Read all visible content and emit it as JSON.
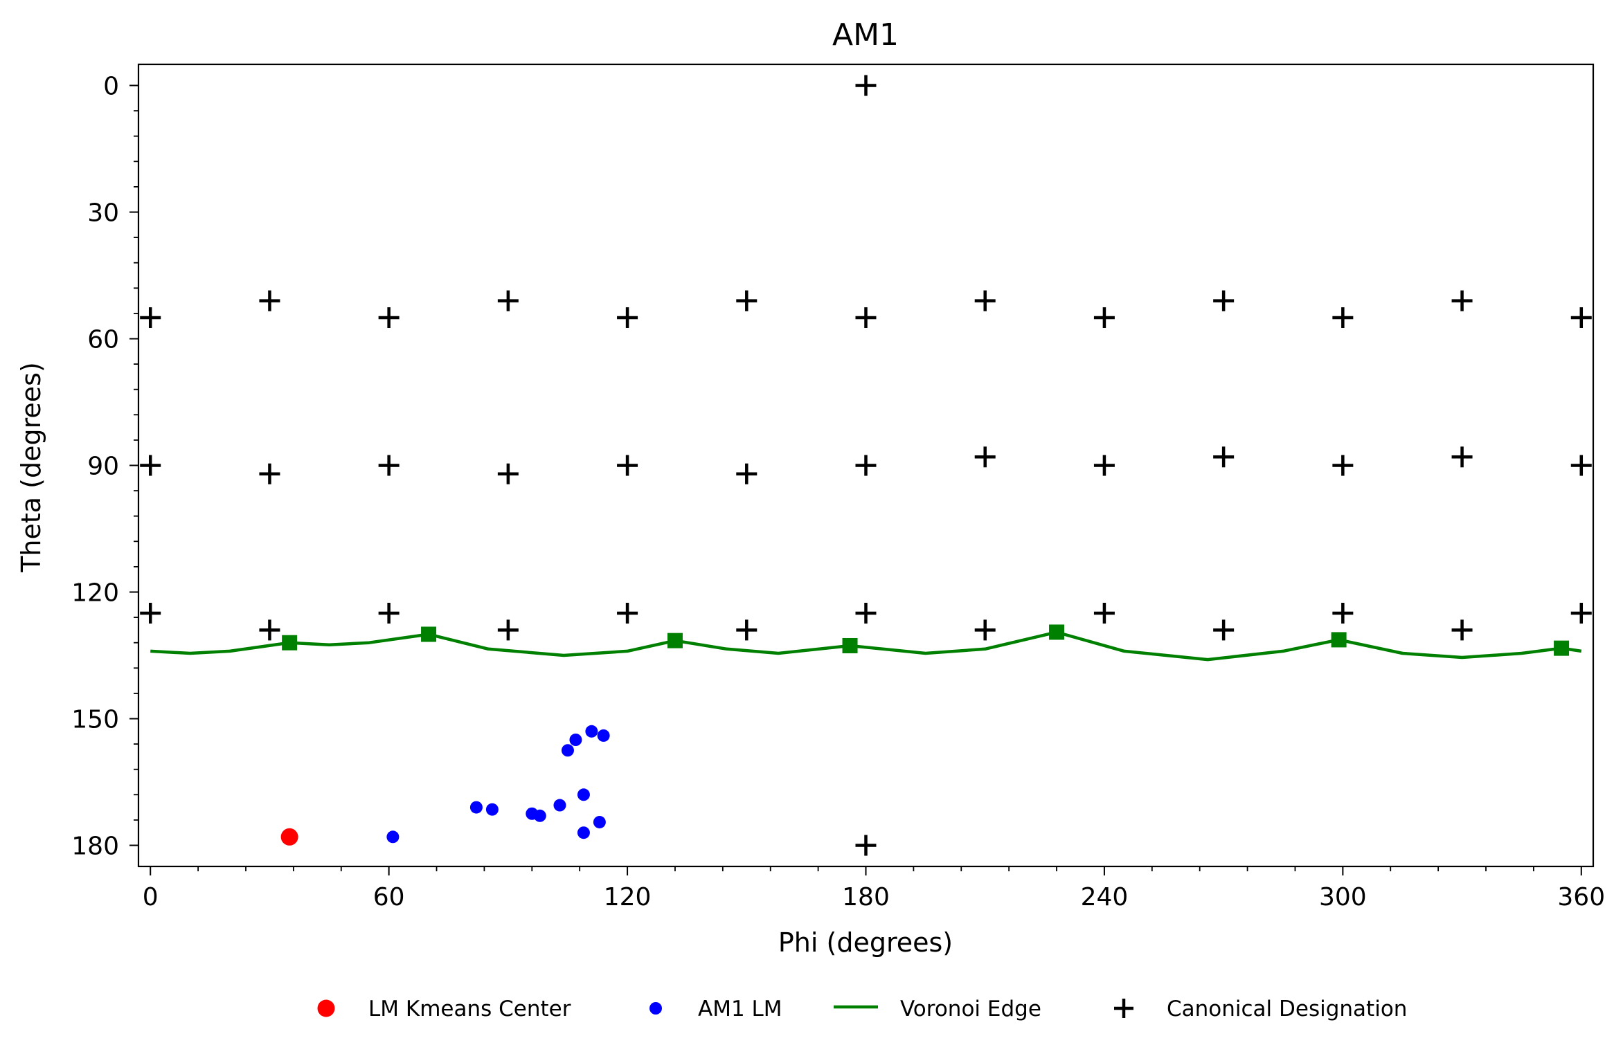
{
  "chart_data": {
    "type": "scatter",
    "title": "AM1",
    "xlabel": "Phi (degrees)",
    "ylabel": "Theta (degrees)",
    "xlim": [
      -3,
      363
    ],
    "ylim": [
      185,
      -5
    ],
    "y_inverted": true,
    "xticks": [
      0,
      60,
      120,
      180,
      240,
      300,
      360
    ],
    "yticks": [
      0,
      30,
      60,
      90,
      120,
      150,
      180
    ],
    "xminor_step": 12,
    "yminor_step": 6,
    "grid": false,
    "legend_position": "bottom-center",
    "legend": [
      {
        "label": "LM Kmeans Center",
        "marker": "circle-large",
        "color": "#ff0000"
      },
      {
        "label": "AM1 LM",
        "marker": "circle",
        "color": "#0000ff"
      },
      {
        "label": "Voronoi Edge",
        "marker": "line",
        "color": "#008000"
      },
      {
        "label": "Canonical Designation",
        "marker": "plus",
        "color": "#000000"
      }
    ],
    "series": [
      {
        "key": "kmeans_center",
        "marker": "circle-large",
        "color": "#ff0000",
        "points": [
          [
            35,
            178
          ]
        ]
      },
      {
        "key": "am1_lm",
        "marker": "circle",
        "color": "#0000ff",
        "points": [
          [
            61,
            178
          ],
          [
            82,
            171
          ],
          [
            86,
            171.5
          ],
          [
            96,
            172.5
          ],
          [
            98,
            173
          ],
          [
            103,
            170.5
          ],
          [
            109,
            168
          ],
          [
            109,
            177
          ],
          [
            113,
            174.5
          ],
          [
            105,
            157.5
          ],
          [
            107,
            155
          ],
          [
            111,
            153
          ],
          [
            114,
            154
          ]
        ]
      },
      {
        "key": "canonical",
        "marker": "plus",
        "color": "#000000",
        "points": [
          [
            180,
            0
          ],
          [
            180,
            180
          ],
          [
            0,
            55
          ],
          [
            30,
            51
          ],
          [
            60,
            55
          ],
          [
            90,
            51
          ],
          [
            120,
            55
          ],
          [
            150,
            51
          ],
          [
            180,
            55
          ],
          [
            210,
            51
          ],
          [
            240,
            55
          ],
          [
            270,
            51
          ],
          [
            300,
            55
          ],
          [
            330,
            51
          ],
          [
            360,
            55
          ],
          [
            0,
            90
          ],
          [
            30,
            92
          ],
          [
            60,
            90
          ],
          [
            90,
            92
          ],
          [
            120,
            90
          ],
          [
            150,
            92
          ],
          [
            180,
            90
          ],
          [
            210,
            88
          ],
          [
            240,
            90
          ],
          [
            270,
            88
          ],
          [
            300,
            90
          ],
          [
            330,
            88
          ],
          [
            360,
            90
          ],
          [
            0,
            125
          ],
          [
            30,
            129
          ],
          [
            60,
            125
          ],
          [
            90,
            129
          ],
          [
            120,
            125
          ],
          [
            150,
            129
          ],
          [
            180,
            125
          ],
          [
            210,
            129
          ],
          [
            240,
            125
          ],
          [
            270,
            129
          ],
          [
            300,
            125
          ],
          [
            330,
            129
          ],
          [
            360,
            125
          ]
        ]
      },
      {
        "key": "voronoi_edge",
        "marker": "line",
        "color": "#008000",
        "points": [
          [
            0,
            134
          ],
          [
            10,
            134.5
          ],
          [
            20,
            134
          ],
          [
            35,
            132
          ],
          [
            45,
            132.5
          ],
          [
            55,
            132
          ],
          [
            70,
            130
          ],
          [
            85,
            133.5
          ],
          [
            104,
            135
          ],
          [
            120,
            134
          ],
          [
            132,
            131.5
          ],
          [
            145,
            133.5
          ],
          [
            158,
            134.5
          ],
          [
            176,
            132.7
          ],
          [
            195,
            134.5
          ],
          [
            210,
            133.5
          ],
          [
            228,
            129.5
          ],
          [
            245,
            134
          ],
          [
            266,
            136
          ],
          [
            285,
            134
          ],
          [
            299,
            131.3
          ],
          [
            315,
            134.5
          ],
          [
            330,
            135.5
          ],
          [
            345,
            134.5
          ],
          [
            355,
            133.3
          ],
          [
            360,
            134
          ]
        ],
        "vertices": [
          [
            35,
            132
          ],
          [
            70,
            130
          ],
          [
            132,
            131.5
          ],
          [
            176,
            132.7
          ],
          [
            228,
            129.5
          ],
          [
            299,
            131.3
          ],
          [
            355,
            133.3
          ]
        ]
      }
    ]
  }
}
